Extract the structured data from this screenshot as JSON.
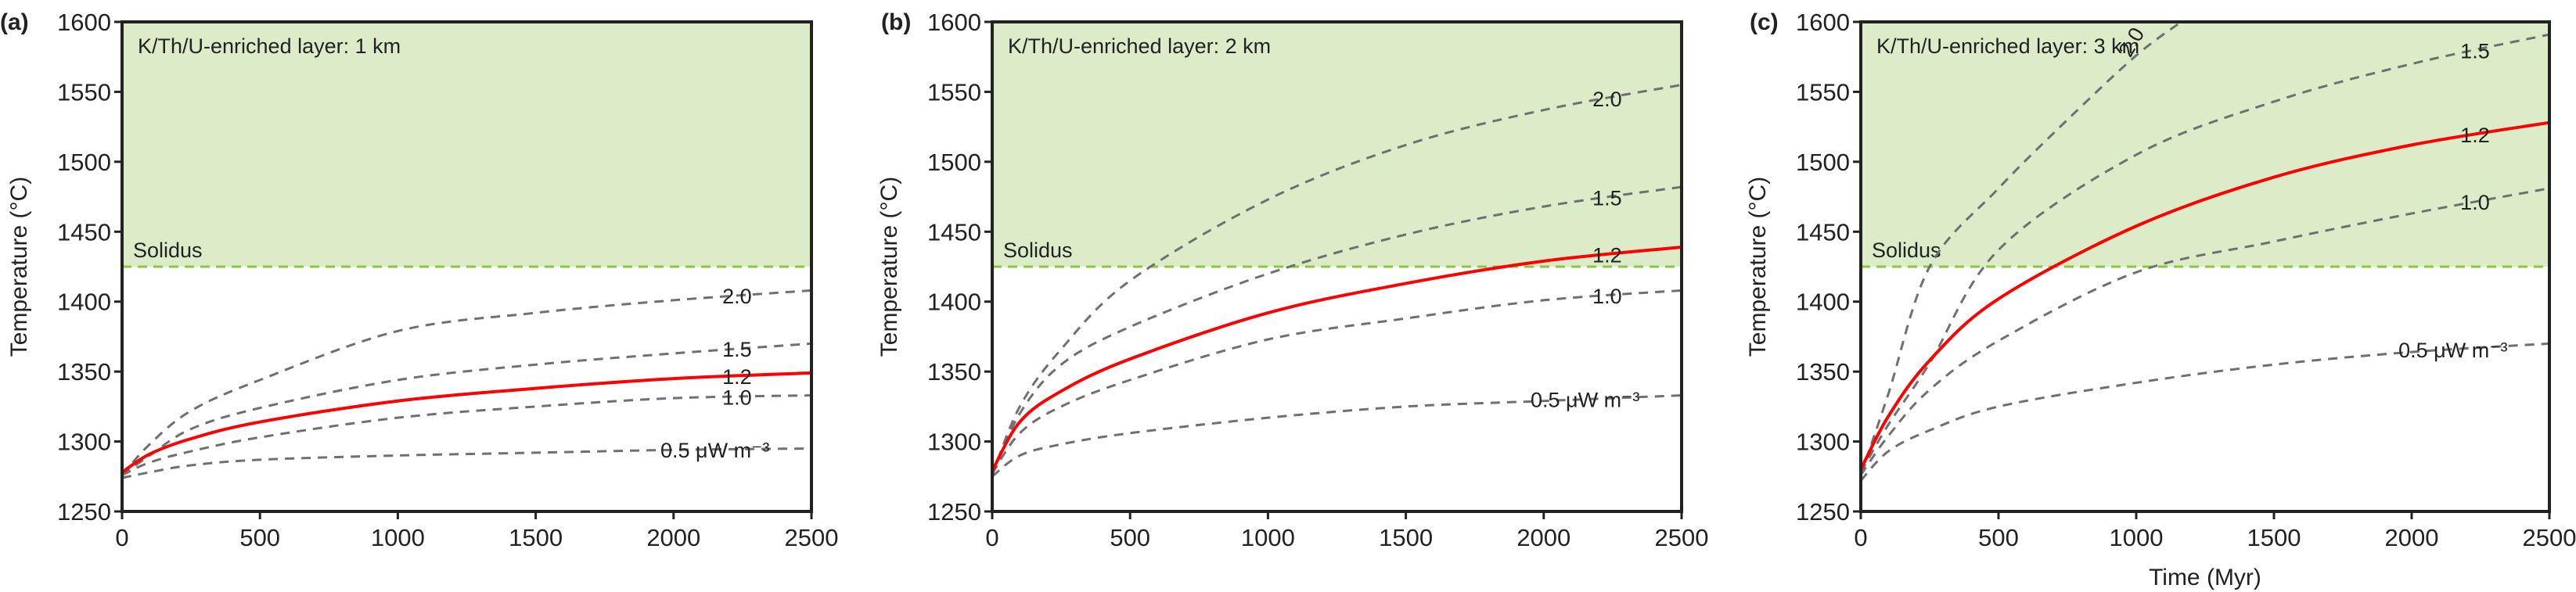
{
  "colors": {
    "melt_zone": "#dcecc8",
    "solidus": "#8cc63f",
    "reference": "#ff0000",
    "other": "#707070",
    "axis": "#222222"
  },
  "chart_data": [
    {
      "type": "line",
      "panel_label": "(a)",
      "annotation": "K/Th/U-enriched layer: 1 km",
      "solidus": {
        "label": "Solidus",
        "value": 1425
      },
      "xlabel": "",
      "ylabel": "Temperature (°C)",
      "xlim": [
        0,
        2500
      ],
      "ylim": [
        1250,
        1600
      ],
      "xticks": [
        0,
        500,
        1000,
        1500,
        2000,
        2500
      ],
      "yticks": [
        1250,
        1300,
        1350,
        1400,
        1450,
        1500,
        1550,
        1600
      ],
      "series": [
        {
          "name": "2.0",
          "reference": false,
          "x": [
            0,
            100,
            250,
            500,
            1000,
            1500,
            2000,
            2500
          ],
          "y": [
            1276,
            1298,
            1322,
            1344,
            1379,
            1392,
            1401,
            1408
          ]
        },
        {
          "name": "1.5",
          "reference": false,
          "x": [
            0,
            100,
            250,
            500,
            1000,
            1500,
            2000,
            2500
          ],
          "y": [
            1276,
            1290,
            1309,
            1324,
            1344,
            1355,
            1363,
            1370
          ]
        },
        {
          "name": "1.2",
          "reference": true,
          "x": [
            0,
            100,
            250,
            500,
            1000,
            1500,
            2000,
            2500
          ],
          "y": [
            1278,
            1291,
            1302,
            1314,
            1329,
            1338,
            1345,
            1349
          ]
        },
        {
          "name": "1.0",
          "reference": false,
          "x": [
            0,
            100,
            250,
            500,
            1000,
            1500,
            2000,
            2500
          ],
          "y": [
            1276,
            1285,
            1293,
            1303,
            1317,
            1325,
            1331,
            1333
          ]
        },
        {
          "name": "0.5 μW m⁻³",
          "reference": false,
          "x": [
            0,
            100,
            250,
            500,
            1000,
            1500,
            2000,
            2500
          ],
          "y": [
            1274,
            1278,
            1283,
            1287,
            1290,
            1292,
            1294,
            1295
          ]
        }
      ]
    },
    {
      "type": "line",
      "panel_label": "(b)",
      "annotation": "K/Th/U-enriched layer: 2 km",
      "solidus": {
        "label": "Solidus",
        "value": 1425
      },
      "xlabel": "",
      "ylabel": "Temperature (°C)",
      "xlim": [
        0,
        2500
      ],
      "ylim": [
        1250,
        1600
      ],
      "xticks": [
        0,
        500,
        1000,
        1500,
        2000,
        2500
      ],
      "yticks": [
        1250,
        1300,
        1350,
        1400,
        1450,
        1500,
        1550,
        1600
      ],
      "series": [
        {
          "name": "2.0",
          "reference": false,
          "x": [
            0,
            100,
            250,
            500,
            1000,
            1500,
            2000,
            2500
          ],
          "y": [
            1276,
            1325,
            1366,
            1415,
            1473,
            1512,
            1537,
            1555
          ]
        },
        {
          "name": "1.5",
          "reference": false,
          "x": [
            0,
            100,
            250,
            500,
            1000,
            1500,
            2000,
            2500
          ],
          "y": [
            1276,
            1320,
            1355,
            1382,
            1420,
            1448,
            1468,
            1482
          ]
        },
        {
          "name": "1.2",
          "reference": true,
          "x": [
            0,
            100,
            250,
            500,
            1000,
            1500,
            2000,
            2500
          ],
          "y": [
            1279,
            1314,
            1336,
            1359,
            1392,
            1413,
            1429,
            1439
          ]
        },
        {
          "name": "1.0",
          "reference": false,
          "x": [
            0,
            100,
            250,
            500,
            1000,
            1500,
            2000,
            2500
          ],
          "y": [
            1277,
            1306,
            1325,
            1344,
            1373,
            1388,
            1401,
            1408
          ]
        },
        {
          "name": "0.5 μW m⁻³",
          "reference": false,
          "x": [
            0,
            100,
            250,
            500,
            1000,
            1500,
            2000,
            2500
          ],
          "y": [
            1275,
            1290,
            1298,
            1306,
            1317,
            1325,
            1329,
            1333
          ]
        }
      ]
    },
    {
      "type": "line",
      "panel_label": "(c)",
      "annotation": "K/Th/U-enriched layer: 3 km",
      "solidus": {
        "label": "Solidus",
        "value": 1425
      },
      "xlabel": "Time (Myr)",
      "ylabel": "Temperature (°C)",
      "xlim": [
        0,
        2500
      ],
      "ylim": [
        1250,
        1600
      ],
      "xticks": [
        0,
        500,
        1000,
        1500,
        2000,
        2500
      ],
      "yticks": [
        1250,
        1300,
        1350,
        1400,
        1450,
        1500,
        1550,
        1600
      ],
      "series": [
        {
          "name": "2.0",
          "reference": false,
          "x": [
            0,
            100,
            250,
            500,
            750,
            1000,
            1163
          ],
          "y": [
            1276,
            1334,
            1425,
            1481,
            1530,
            1576,
            1600
          ]
        },
        {
          "name": "1.5",
          "reference": false,
          "x": [
            0,
            100,
            250,
            500,
            1000,
            1500,
            2000,
            2500
          ],
          "y": [
            1278,
            1312,
            1356,
            1437,
            1505,
            1543,
            1570,
            1591
          ]
        },
        {
          "name": "1.2",
          "reference": true,
          "x": [
            0,
            100,
            250,
            500,
            1000,
            1500,
            2000,
            2500
          ],
          "y": [
            1280,
            1318,
            1358,
            1402,
            1454,
            1489,
            1512,
            1528
          ]
        },
        {
          "name": "1.0",
          "reference": false,
          "x": [
            0,
            100,
            250,
            500,
            1000,
            1500,
            2000,
            2500
          ],
          "y": [
            1276,
            1304,
            1337,
            1372,
            1421,
            1443,
            1463,
            1481
          ]
        },
        {
          "name": "0.5 μW m⁻³",
          "reference": false,
          "x": [
            0,
            100,
            250,
            500,
            1000,
            1500,
            2000,
            2500
          ],
          "y": [
            1272,
            1293,
            1308,
            1325,
            1342,
            1355,
            1364,
            1370
          ]
        }
      ]
    }
  ]
}
